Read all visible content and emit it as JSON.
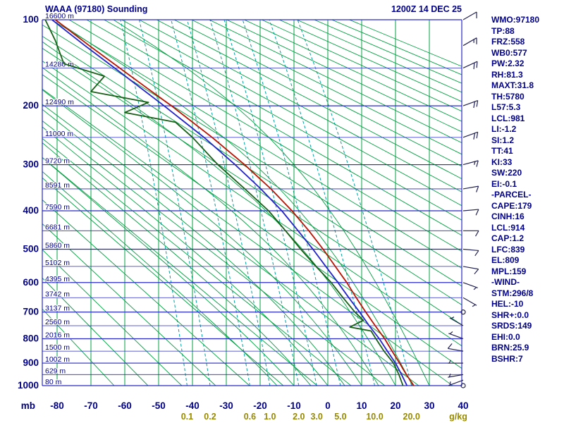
{
  "chart_data": {
    "type": "line",
    "subtype": "stuve-sounding",
    "title": "WAAA (97180) Sounding",
    "datetime": "1200Z 14 DEC 25",
    "station": {
      "name": "WAAA",
      "wmo": "97180"
    },
    "pressure_axis": {
      "unit": "mb",
      "scale": "pressure^0.286",
      "major_ticks": [
        100,
        200,
        300,
        400,
        500,
        600,
        700,
        800,
        900,
        1000
      ],
      "minor_step": 50,
      "range": [
        100,
        1000
      ]
    },
    "temp_axis": {
      "unit": "C",
      "ticks": [
        -80,
        -70,
        -60,
        -50,
        -40,
        -30,
        -20,
        -10,
        0,
        10,
        20,
        30,
        40
      ]
    },
    "height_labels": [
      {
        "p": 100,
        "label": "16600 m"
      },
      {
        "p": 150,
        "label": "14280 m"
      },
      {
        "p": 200,
        "label": "12490 m"
      },
      {
        "p": 250,
        "label": "11000 m"
      },
      {
        "p": 300,
        "label": "9720 m"
      },
      {
        "p": 350,
        "label": "8591 m"
      },
      {
        "p": 400,
        "label": "7590 m"
      },
      {
        "p": 450,
        "label": "6681 m"
      },
      {
        "p": 500,
        "label": "5860 m"
      },
      {
        "p": 550,
        "label": "5102 m"
      },
      {
        "p": 600,
        "label": "4395 m"
      },
      {
        "p": 650,
        "label": "3742 m"
      },
      {
        "p": 700,
        "label": "3137 m"
      },
      {
        "p": 750,
        "label": "2560 m"
      },
      {
        "p": 800,
        "label": "2016 m"
      },
      {
        "p": 850,
        "label": "1500 m"
      },
      {
        "p": 900,
        "label": "1002 m"
      },
      {
        "p": 950,
        "label": "629 m"
      },
      {
        "p": 1000,
        "label": "80 m"
      }
    ],
    "mixing_ratio_lines": {
      "unit": "g/kg",
      "values": [
        0.1,
        0.2,
        0.6,
        1.0,
        2.0,
        3.0,
        5.0,
        10.0,
        20.0
      ]
    },
    "dry_adiabats": {
      "theta_k_start": 210,
      "theta_k_end": 540,
      "step_k": 10
    },
    "moist_adiabats": {
      "surface_temps_c": [
        -15,
        -10,
        -5,
        0,
        5,
        10,
        15,
        20,
        25,
        30
      ]
    },
    "series": [
      {
        "name": "temperature",
        "color": "#bb1100",
        "points": [
          [
            1000,
            25.4
          ],
          [
            950,
            23.2
          ],
          [
            925,
            22.2
          ],
          [
            900,
            21.2
          ],
          [
            850,
            19.0
          ],
          [
            800,
            16.8
          ],
          [
            750,
            14.0
          ],
          [
            700,
            11.2
          ],
          [
            650,
            8.4
          ],
          [
            600,
            5.6
          ],
          [
            550,
            2.2
          ],
          [
            500,
            -1.4
          ],
          [
            450,
            -5.6
          ],
          [
            400,
            -10.6
          ],
          [
            350,
            -16.8
          ],
          [
            300,
            -24.6
          ],
          [
            250,
            -34.2
          ],
          [
            200,
            -46.2
          ],
          [
            175,
            -53.5
          ],
          [
            150,
            -61.5
          ],
          [
            125,
            -70.5
          ],
          [
            100,
            -80.5
          ]
        ]
      },
      {
        "name": "wet_bulb",
        "color": "#2222cc",
        "points": [
          [
            1000,
            23.4
          ],
          [
            950,
            21.8
          ],
          [
            900,
            20.0
          ],
          [
            850,
            17.6
          ],
          [
            800,
            15.2
          ],
          [
            750,
            12.2
          ],
          [
            700,
            9.4
          ],
          [
            650,
            6.2
          ],
          [
            600,
            3.0
          ],
          [
            550,
            -0.6
          ],
          [
            500,
            -4.4
          ],
          [
            450,
            -8.8
          ],
          [
            400,
            -13.6
          ],
          [
            350,
            -19.8
          ],
          [
            300,
            -27.4
          ],
          [
            250,
            -36.6
          ],
          [
            200,
            -48.4
          ],
          [
            150,
            -63.0
          ],
          [
            125,
            -71.8
          ],
          [
            100,
            -81.5
          ]
        ]
      },
      {
        "name": "dewpoint",
        "color": "#186018",
        "points": [
          [
            1000,
            22.2
          ],
          [
            950,
            21.0
          ],
          [
            900,
            19.4
          ],
          [
            850,
            16.6
          ],
          [
            800,
            14.2
          ],
          [
            770,
            12.8
          ],
          [
            755,
            6.5
          ],
          [
            730,
            10.5
          ],
          [
            700,
            8.0
          ],
          [
            650,
            4.5
          ],
          [
            600,
            1.0
          ],
          [
            550,
            -3.5
          ],
          [
            500,
            -8.0
          ],
          [
            450,
            -12.5
          ],
          [
            400,
            -17.5
          ],
          [
            350,
            -24.5
          ],
          [
            300,
            -32.5
          ],
          [
            250,
            -40.0
          ],
          [
            225,
            -45.0
          ],
          [
            210,
            -60.0
          ],
          [
            195,
            -53.0
          ],
          [
            180,
            -70.0
          ],
          [
            160,
            -66.0
          ],
          [
            145,
            -78.0
          ],
          [
            120,
            -80.5
          ],
          [
            100,
            -83.5
          ]
        ]
      }
    ],
    "wind_barbs": {
      "unit": "kt",
      "levels": [
        [
          1000,
          0,
          0
        ],
        [
          975,
          250,
          4
        ],
        [
          950,
          260,
          5
        ],
        [
          900,
          270,
          7
        ],
        [
          850,
          280,
          8
        ],
        [
          800,
          290,
          6
        ],
        [
          750,
          300,
          5
        ],
        [
          700,
          0,
          0
        ],
        [
          650,
          120,
          5
        ],
        [
          600,
          110,
          7
        ],
        [
          550,
          100,
          8
        ],
        [
          500,
          95,
          10
        ],
        [
          450,
          90,
          12
        ],
        [
          400,
          85,
          10
        ],
        [
          350,
          80,
          12
        ],
        [
          300,
          75,
          15
        ],
        [
          250,
          70,
          18
        ],
        [
          200,
          70,
          20
        ],
        [
          150,
          65,
          18
        ],
        [
          125,
          60,
          15
        ],
        [
          100,
          60,
          12
        ]
      ]
    },
    "indices": [
      "WMO:97180",
      "TP:88",
      "FRZ:558",
      "WB0:577",
      "PW:2.32",
      "RH:81.3",
      "MAXT:31.8",
      "TH:5780",
      "L57:5.3",
      "LCL:981",
      "LI:-1.2",
      "SI:1.2",
      "TT:41",
      "KI:33",
      "SW:220",
      "EI:-0.1",
      "-PARCEL-",
      "CAPE:179",
      "CINH:16",
      "LCL:914",
      "CAP:1.2",
      "LFC:839",
      "EL:809",
      "MPL:159",
      "-WIND-",
      "STM:296/8",
      "HEL:-10",
      "SHR+:0.0",
      "SRDS:149",
      "EHI:0.0",
      "BRN:25.9",
      "BSHR:7"
    ],
    "colors": {
      "background": "#ffffff",
      "grid_pressure": "#2929c8",
      "grid_isotherm": "#00a040",
      "grid_adiabat": "#00a040",
      "grid_mixing": "#00a0a0",
      "axis_text": "#000088",
      "mixing_text": "#988a00",
      "trace_temp": "#bb1100",
      "trace_dew": "#186018",
      "trace_wetbulb": "#2222cc",
      "wind_barb": "#222255"
    }
  }
}
